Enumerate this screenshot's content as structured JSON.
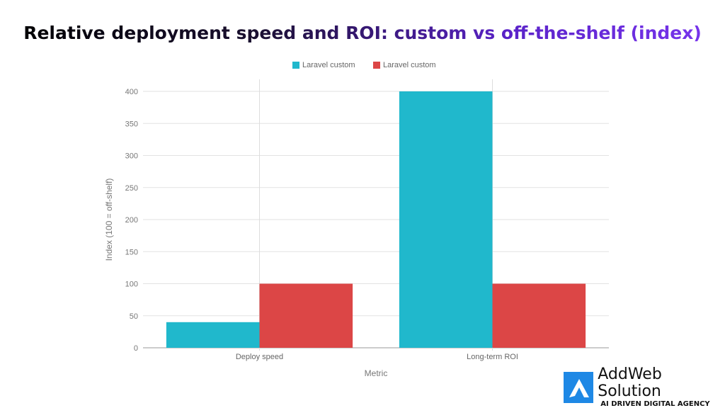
{
  "chart_data": {
    "type": "bar",
    "title": "Relative deployment speed and ROI: custom vs off-the-shelf (index)",
    "xlabel": "Metric",
    "ylabel": "Index (100 = off-shelf)",
    "categories": [
      "Deploy speed",
      "Long-term ROI"
    ],
    "series": [
      {
        "name": "Laravel custom",
        "color": "#20b8cc",
        "values": [
          40,
          400
        ]
      },
      {
        "name": "Laravel custom",
        "color": "#dc4646",
        "values": [
          100,
          100
        ]
      }
    ],
    "ylim": [
      0,
      400
    ],
    "yticks": [
      0,
      50,
      100,
      150,
      200,
      250,
      300,
      350,
      400
    ],
    "grid": true,
    "legend": "top"
  },
  "logo": {
    "name": "AddWeb Solution",
    "tagline": "AI DRIVEN DIGITAL AGENCY"
  }
}
